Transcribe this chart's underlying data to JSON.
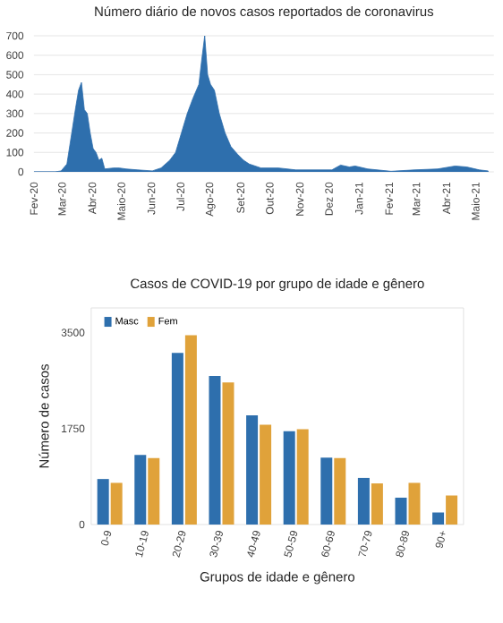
{
  "chart_data": [
    {
      "type": "area",
      "title": "Número diário de novos casos reportados de coronavirus",
      "x": [
        "2020-02-01",
        "2020-02-23",
        "2020-02-29",
        "2020-03-06",
        "2020-03-11",
        "2020-03-15",
        "2020-03-18",
        "2020-03-21",
        "2020-03-24",
        "2020-03-27",
        "2020-03-30",
        "2020-04-02",
        "2020-04-05",
        "2020-04-08",
        "2020-04-11",
        "2020-04-14",
        "2020-04-23",
        "2020-04-29",
        "2020-05-06",
        "2020-05-18",
        "2020-06-02",
        "2020-06-11",
        "2020-06-20",
        "2020-06-26",
        "2020-07-02",
        "2020-07-08",
        "2020-07-14",
        "2020-07-20",
        "2020-07-23",
        "2020-07-26",
        "2020-07-29",
        "2020-08-01",
        "2020-08-05",
        "2020-08-10",
        "2020-08-16",
        "2020-08-22",
        "2020-08-29",
        "2020-09-04",
        "2020-09-10",
        "2020-09-22",
        "2020-10-10",
        "2020-10-28",
        "2020-12-04",
        "2020-12-13",
        "2020-12-22",
        "2020-12-28",
        "2021-01-10",
        "2021-02-03",
        "2021-02-27",
        "2021-03-23",
        "2021-04-10",
        "2021-04-22",
        "2021-05-05",
        "2021-05-14"
      ],
      "series": [
        {
          "color": "#2e6fad",
          "values": [
            0,
            0,
            5,
            40,
            200,
            330,
            420,
            460,
            320,
            300,
            200,
            120,
            100,
            60,
            70,
            15,
            20,
            20,
            15,
            10,
            5,
            20,
            60,
            100,
            200,
            300,
            380,
            450,
            580,
            700,
            500,
            450,
            420,
            300,
            200,
            130,
            90,
            60,
            40,
            20,
            20,
            10,
            10,
            35,
            25,
            30,
            15,
            3,
            10,
            15,
            30,
            25,
            10,
            5
          ]
        }
      ],
      "xlim": [
        "2020-02-01",
        "2021-05-20"
      ],
      "xticks": [
        {
          "value": "2020-02-01",
          "label": "Fev-20"
        },
        {
          "value": "2020-03-01",
          "label": "Mar-20"
        },
        {
          "value": "2020-04-01",
          "label": "Abr-20"
        },
        {
          "value": "2020-05-01",
          "label": "Maio-20"
        },
        {
          "value": "2020-06-01",
          "label": "Jun-20"
        },
        {
          "value": "2020-07-01",
          "label": "Jul-20"
        },
        {
          "value": "2020-08-01",
          "label": "Ago-20"
        },
        {
          "value": "2020-09-01",
          "label": "Set-20"
        },
        {
          "value": "2020-10-01",
          "label": "Out-20"
        },
        {
          "value": "2020-11-01",
          "label": "Nov-20"
        },
        {
          "value": "2020-12-01",
          "label": "Dez 20"
        },
        {
          "value": "2021-01-01",
          "label": "Jan-21"
        },
        {
          "value": "2021-02-01",
          "label": "Fev-21"
        },
        {
          "value": "2021-03-01",
          "label": "Mar-21"
        },
        {
          "value": "2021-04-01",
          "label": "Abr-21"
        },
        {
          "value": "2021-05-01",
          "label": "Maio-21"
        }
      ],
      "ylim": [
        0,
        700
      ],
      "yticks": [
        0,
        100,
        200,
        300,
        400,
        500,
        600,
        700
      ],
      "grid": "y",
      "legend": false
    },
    {
      "type": "bar",
      "title": "Casos de COVID-19 por grupo de idade e gênero",
      "xlabel": "Grupos de idade e gênero",
      "ylabel": "Número de casos",
      "categories": [
        "0-9",
        "10-19",
        "20-29",
        "30-39",
        "40-49",
        "50-59",
        "60-69",
        "70-79",
        "80-89",
        "90+"
      ],
      "series": [
        {
          "name": "Masc",
          "color": "#2e6fad",
          "values": [
            830,
            1270,
            3130,
            2710,
            1990,
            1700,
            1220,
            850,
            490,
            220
          ]
        },
        {
          "name": "Fem",
          "color": "#e0a23a",
          "values": [
            760,
            1210,
            3450,
            2590,
            1820,
            1740,
            1210,
            750,
            760,
            530
          ]
        }
      ],
      "ylim": [
        0,
        3950
      ],
      "yticks": [
        0,
        1750,
        3500
      ],
      "grid": false,
      "legend": "top left"
    }
  ]
}
